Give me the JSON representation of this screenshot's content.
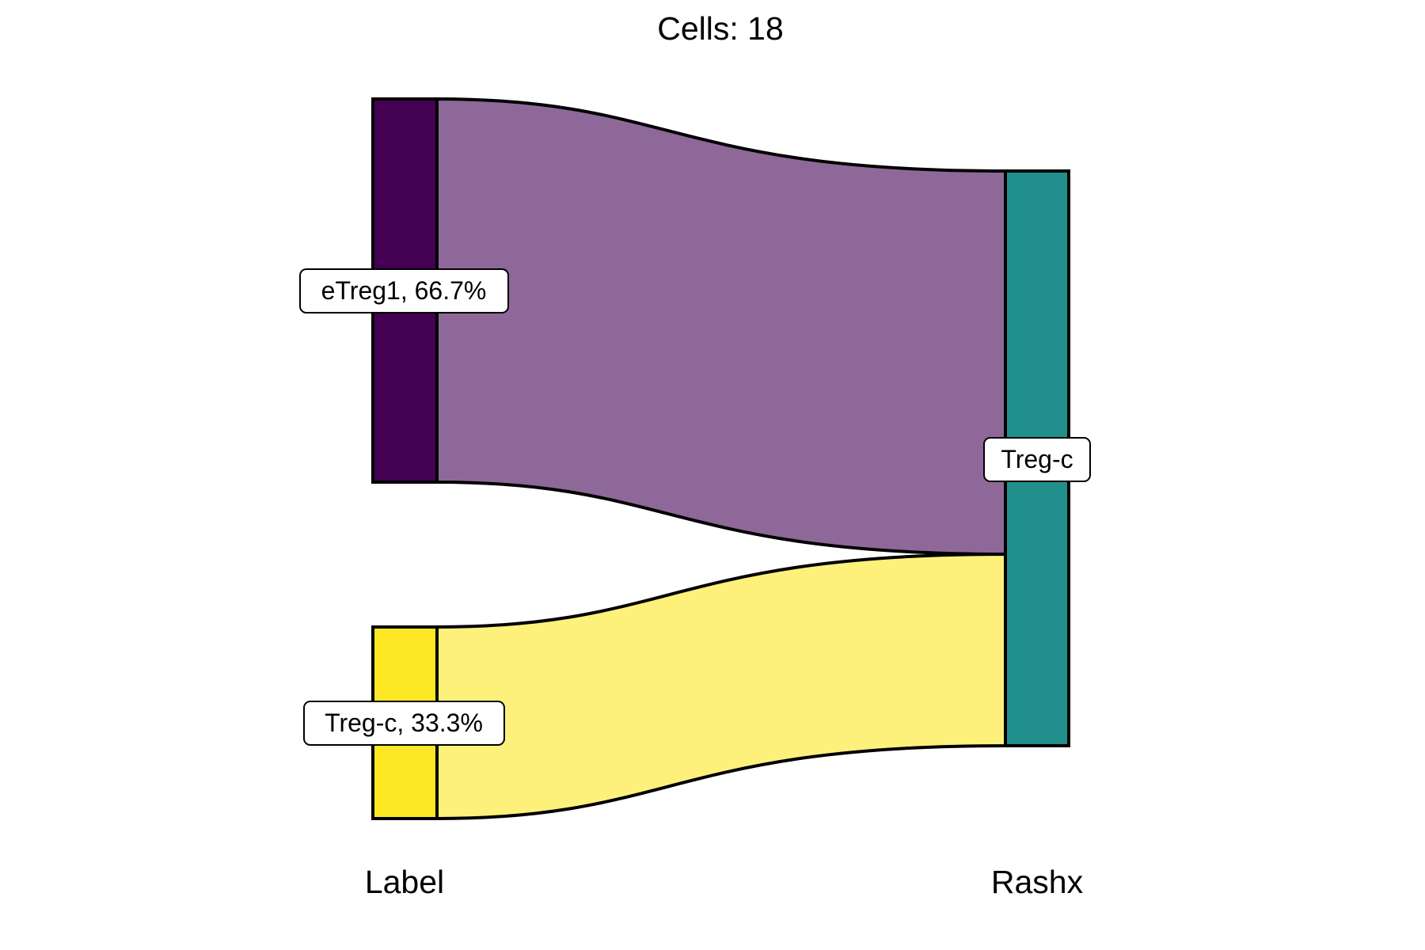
{
  "title": "Cells:  18",
  "axes": {
    "left": "Label",
    "right": "Rashx"
  },
  "colors": {
    "etreg1_node": "#440154",
    "etreg1_flow": "#8e6898",
    "tregc_left_node": "#fde725",
    "tregc_left_flow": "#fef17b",
    "tregc_right_node": "#21908c"
  },
  "chart_data": {
    "type": "sankey",
    "total_cells": 18,
    "columns": [
      "Label",
      "Rashx"
    ],
    "nodes": [
      {
        "id": "etreg1",
        "column": "Label",
        "name": "eTreg1",
        "count": 12,
        "label": "eTreg1, 66.7%"
      },
      {
        "id": "tregc_left",
        "column": "Label",
        "name": "Treg-c",
        "count": 6,
        "label": "Treg-c, 33.3%"
      },
      {
        "id": "tregc_right",
        "column": "Rashx",
        "name": "Treg-c",
        "count": 18,
        "label": "Treg-c"
      }
    ],
    "links": [
      {
        "source": "etreg1",
        "target": "tregc_right",
        "value": 12
      },
      {
        "source": "tregc_left",
        "target": "tregc_right",
        "value": 6
      }
    ]
  }
}
